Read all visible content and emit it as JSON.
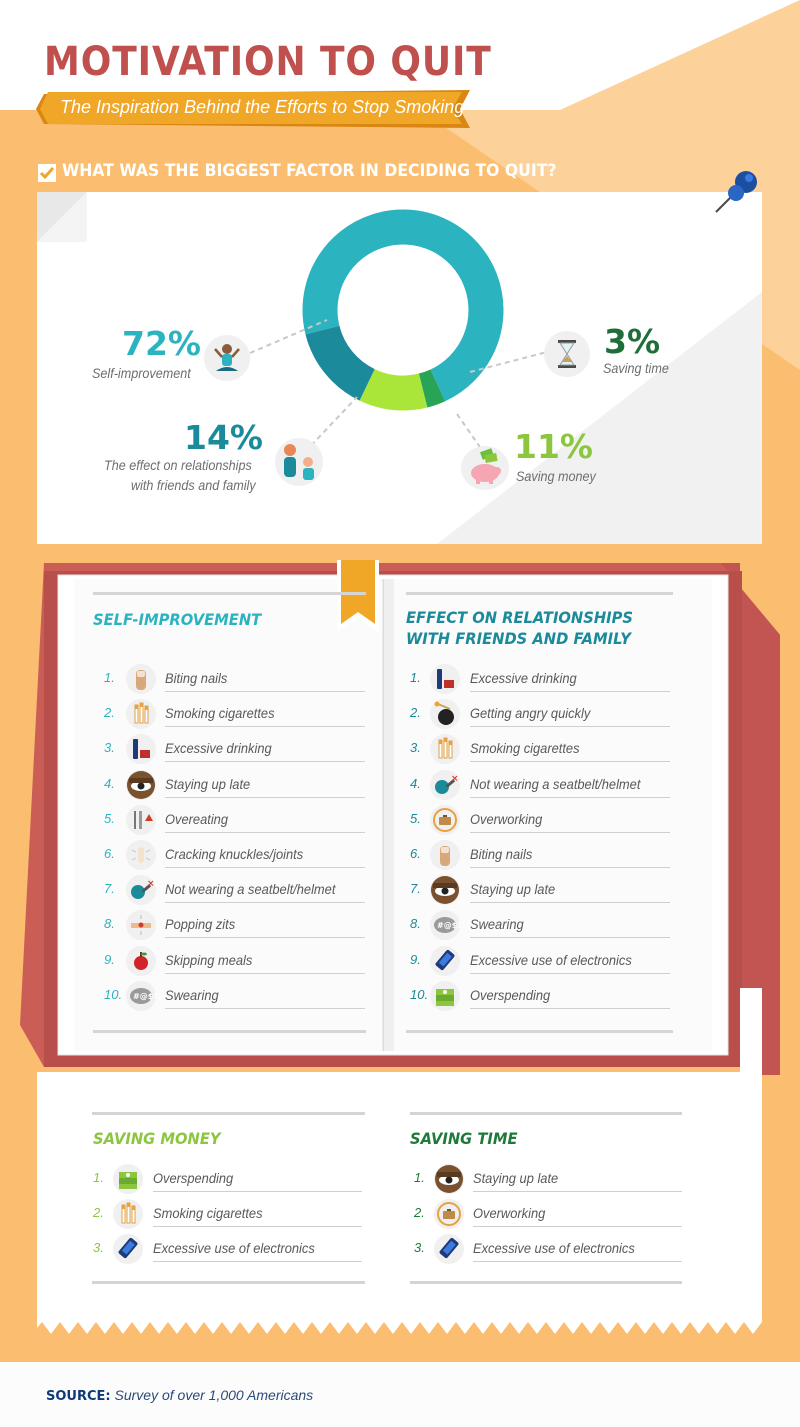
{
  "header": {
    "title": "MOTIVATION TO QUIT",
    "subtitle": "The Inspiration Behind the Efforts to Stop Smoking"
  },
  "question": "WHAT WAS THE BIGGEST FACTOR IN DECIDING TO QUIT?",
  "chart_data": {
    "type": "pie",
    "variant": "donut",
    "categories": [
      "Self-improvement",
      "The effect on relationships with friends and family",
      "Saving money",
      "Saving time"
    ],
    "values": [
      72,
      14,
      11,
      3
    ],
    "labels": [
      "72%",
      "14%",
      "11%",
      "3%"
    ],
    "colors": [
      "#2bb3c0",
      "#1b8a9a",
      "#aae63a",
      "#27a456"
    ],
    "title": ""
  },
  "callouts": {
    "self_improvement": {
      "pct": "72%",
      "label": "Self-improvement"
    },
    "relationships": {
      "pct": "14%",
      "label_line1": "The effect on relationships",
      "label_line2": "with friends and family"
    },
    "money": {
      "pct": "11%",
      "label": "Saving money"
    },
    "time": {
      "pct": "3%",
      "label": "Saving time"
    }
  },
  "lists": {
    "self_improvement": {
      "title": "SELF-IMPROVEMENT",
      "items": [
        {
          "num": "1.",
          "text": "Biting nails",
          "icon": "nail-icon"
        },
        {
          "num": "2.",
          "text": "Smoking cigarettes",
          "icon": "cigarettes-icon"
        },
        {
          "num": "3.",
          "text": "Excessive drinking",
          "icon": "drinking-icon"
        },
        {
          "num": "4.",
          "text": "Staying up late",
          "icon": "eye-icon"
        },
        {
          "num": "5.",
          "text": "Overeating",
          "icon": "fork-knife-icon"
        },
        {
          "num": "6.",
          "text": "Cracking knuckles/joints",
          "icon": "knuckle-icon"
        },
        {
          "num": "7.",
          "text": "Not wearing a seatbelt/helmet",
          "icon": "seatbelt-icon"
        },
        {
          "num": "8.",
          "text": "Popping zits",
          "icon": "zit-icon"
        },
        {
          "num": "9.",
          "text": "Skipping meals",
          "icon": "apple-icon"
        },
        {
          "num": "10.",
          "text": "Swearing",
          "icon": "swearing-icon"
        }
      ]
    },
    "relationships": {
      "title_line1": "EFFECT ON RELATIONSHIPS",
      "title_line2": "WITH FRIENDS AND FAMILY",
      "items": [
        {
          "num": "1.",
          "text": "Excessive drinking",
          "icon": "drinking-icon"
        },
        {
          "num": "2.",
          "text": "Getting angry quickly",
          "icon": "bomb-icon"
        },
        {
          "num": "3.",
          "text": "Smoking cigarettes",
          "icon": "cigarettes-icon"
        },
        {
          "num": "4.",
          "text": "Not wearing a seatbelt/helmet",
          "icon": "seatbelt-icon"
        },
        {
          "num": "5.",
          "text": "Overworking",
          "icon": "briefcase-icon"
        },
        {
          "num": "6.",
          "text": "Biting nails",
          "icon": "nail-icon"
        },
        {
          "num": "7.",
          "text": "Staying up late",
          "icon": "eye-icon"
        },
        {
          "num": "8.",
          "text": "Swearing",
          "icon": "swearing-icon"
        },
        {
          "num": "9.",
          "text": "Excessive use of electronics",
          "icon": "phone-icon"
        },
        {
          "num": "10.",
          "text": "Overspending",
          "icon": "money-icon"
        }
      ]
    },
    "money": {
      "title": "SAVING MONEY",
      "items": [
        {
          "num": "1.",
          "text": "Overspending",
          "icon": "money-icon"
        },
        {
          "num": "2.",
          "text": "Smoking cigarettes",
          "icon": "cigarettes-icon"
        },
        {
          "num": "3.",
          "text": "Excessive use of electronics",
          "icon": "phone-icon"
        }
      ]
    },
    "time": {
      "title": "SAVING TIME",
      "items": [
        {
          "num": "1.",
          "text": "Staying up late",
          "icon": "eye-icon"
        },
        {
          "num": "2.",
          "text": "Overworking",
          "icon": "briefcase-icon"
        },
        {
          "num": "3.",
          "text": "Excessive use of electronics",
          "icon": "phone-icon"
        }
      ]
    }
  },
  "source": {
    "label": "SOURCE:",
    "text": "Survey of over 1,000 Americans"
  },
  "colors": {
    "background": "#fbbd6f",
    "title": "#c0504d",
    "banner": "#e89a1d",
    "teal": "#2bb3c0",
    "dark_teal": "#1b8a9a",
    "lime": "#8cc63f",
    "green": "#1f7a3a",
    "book_red": "#cb5d57",
    "navy": "#0e3a78"
  }
}
